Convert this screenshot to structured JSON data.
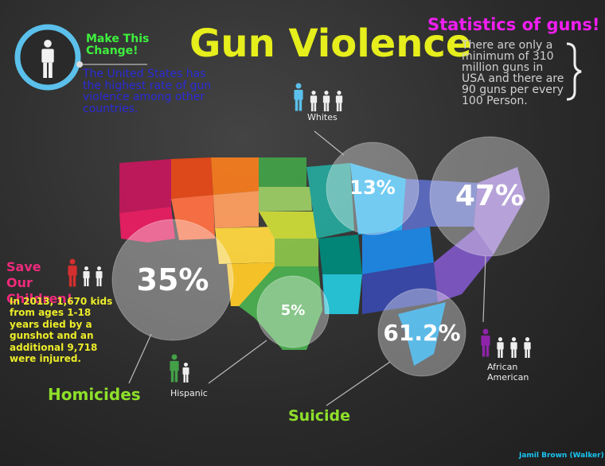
{
  "title": "Gun Violence",
  "call_to_action": {
    "heading": "Make This Change!",
    "text": "The United States has the highest rate of gun violence among other countries."
  },
  "statistics": {
    "heading": "Statistics of guns!",
    "text": "There are only a minimum of 310 million guns in USA and there are 90 guns per every 100 Person."
  },
  "children": {
    "heading": "Save Our Children!",
    "text": "In 2013, 1,670 kids from ages 1-18 years died by a gunshot and an additional 9,718 were injured."
  },
  "groups": {
    "whites": "Whites",
    "african_american": "African American",
    "hispanic": "Hispanic"
  },
  "categories": {
    "homicides": "Homicides",
    "suicide": "Suicide"
  },
  "circles": [
    "13%",
    "47%",
    "35%",
    "5%",
    "61.2%"
  ],
  "credit": "Jamil Brown (Walker)"
}
